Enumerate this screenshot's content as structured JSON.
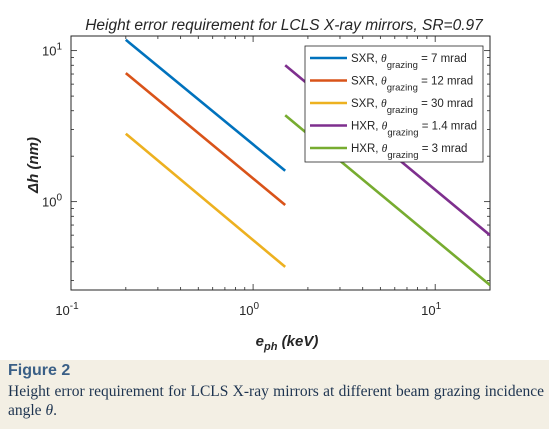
{
  "caption": {
    "label": "Figure 2",
    "text": "Height error requirement for LCLS X-ray mirrors at different beam grazing incidence angle",
    "symbol": "θ",
    "end": "."
  },
  "chart_data": {
    "type": "line",
    "title": "Height error requirement for LCLS X-ray mirrors, SR=0.97",
    "xlabel_main": "e",
    "xlabel_sub": "ph",
    "xlabel_unit": " (keV)",
    "ylabel": "Δh (nm)",
    "x_scale": "log",
    "y_scale": "log",
    "xlim": [
      0.1,
      20
    ],
    "ylim": [
      0.26,
      12.5
    ],
    "x_ticks": [
      {
        "value": 0.1,
        "base": "10",
        "exp": "-1"
      },
      {
        "value": 1,
        "base": "10",
        "exp": "0"
      },
      {
        "value": 10,
        "base": "10",
        "exp": "1"
      }
    ],
    "y_ticks": [
      {
        "value": 1,
        "base": "10",
        "exp": "0"
      },
      {
        "value": 10,
        "base": "10",
        "exp": "1"
      }
    ],
    "grid": false,
    "legend_position": "top-right",
    "series": [
      {
        "name_prefix": "SXR, ",
        "name_theta": "θ",
        "name_sub": "grazing",
        "name_value": " = 7 mrad",
        "color": "#0072bd",
        "x": [
          0.2,
          1.5
        ],
        "y": [
          11.8,
          1.6
        ]
      },
      {
        "name_prefix": "SXR, ",
        "name_theta": "θ",
        "name_sub": "grazing",
        "name_value": " = 12 mrad",
        "color": "#d95319",
        "x": [
          0.2,
          1.5
        ],
        "y": [
          7.1,
          0.95
        ]
      },
      {
        "name_prefix": "SXR, ",
        "name_theta": "θ",
        "name_sub": "grazing",
        "name_value": " = 30 mrad",
        "color": "#edb120",
        "x": [
          0.2,
          1.5
        ],
        "y": [
          2.82,
          0.37
        ]
      },
      {
        "name_prefix": "HXR, ",
        "name_theta": "θ",
        "name_sub": "grazing",
        "name_value": " = 1.4 mrad",
        "color": "#7e2f8e",
        "x": [
          1.5,
          20
        ],
        "y": [
          8.0,
          0.6
        ]
      },
      {
        "name_prefix": "HXR, ",
        "name_theta": "θ",
        "name_sub": "grazing",
        "name_value": " = 3 mrad",
        "color": "#77ac30",
        "x": [
          1.5,
          20
        ],
        "y": [
          3.73,
          0.28
        ]
      }
    ]
  }
}
